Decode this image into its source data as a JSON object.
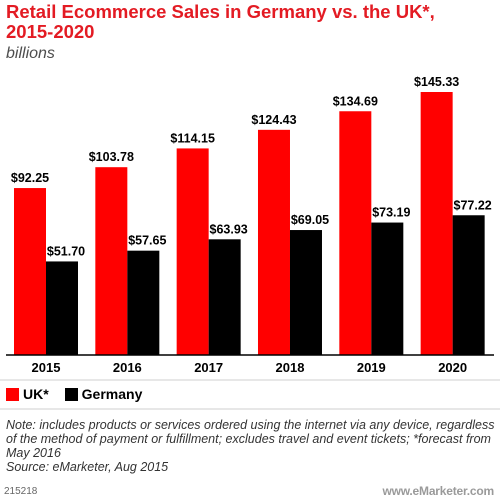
{
  "header": {
    "title_line1": "Retail Ecommerce Sales in Germany vs. the UK*,",
    "title_line2": "2015-2020",
    "subtitle": "billions"
  },
  "chart_data": {
    "type": "bar",
    "title": "Retail Ecommerce Sales in Germany vs. the UK*, 2015-2020",
    "subtitle": "billions",
    "categories": [
      "2015",
      "2016",
      "2017",
      "2018",
      "2019",
      "2020"
    ],
    "series": [
      {
        "name": "UK*",
        "color": "#ff0000",
        "values": [
          92.25,
          103.78,
          114.15,
          124.43,
          134.69,
          145.33
        ],
        "labels": [
          "$92.25",
          "$103.78",
          "$114.15",
          "$124.43",
          "$134.69",
          "$145.33"
        ]
      },
      {
        "name": "Germany",
        "color": "#000000",
        "values": [
          51.7,
          57.65,
          63.93,
          69.05,
          73.19,
          77.22
        ],
        "labels": [
          "$51.70",
          "$57.65",
          "$63.93",
          "$69.05",
          "$73.19",
          "$77.22"
        ]
      }
    ],
    "ylim": [
      0,
      145.33
    ],
    "grid": false,
    "legend": "bottom-left"
  },
  "legend": {
    "items": [
      {
        "label": "UK*",
        "color": "#ff0000"
      },
      {
        "label": "Germany",
        "color": "#000000"
      }
    ]
  },
  "notes": {
    "text": "Note: includes products or services ordered using the internet via any device, regardless of the method of payment or fulfillment; excludes travel and event tickets; *forecast from May 2016",
    "source": "Source: eMarketer, Aug 2015"
  },
  "footer": {
    "id": "215218",
    "brand": "www.eMarketer.com"
  }
}
